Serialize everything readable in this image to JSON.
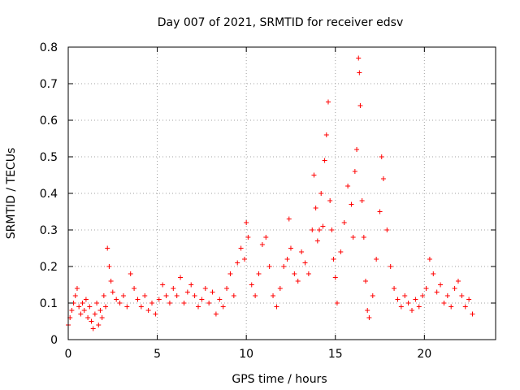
{
  "chart_data": {
    "type": "scatter",
    "title": "Day 007 of 2021, SRMTID for receiver edsv",
    "xlabel": "GPS time / hours",
    "ylabel": "SRMTID / TECUs",
    "xlim": [
      0,
      24
    ],
    "ylim": [
      0,
      0.8
    ],
    "xticks": [
      "0",
      "5",
      "10",
      "15",
      "20"
    ],
    "yticks": [
      "0",
      "0.1",
      "0.2",
      "0.3",
      "0.4",
      "0.5",
      "0.6",
      "0.7",
      "0.8"
    ],
    "grid": true,
    "marker": "+",
    "series": [
      {
        "name": "SRMTID",
        "color": "#ff0000",
        "points": [
          [
            0.0,
            0.04
          ],
          [
            0.1,
            0.06
          ],
          [
            0.2,
            0.08
          ],
          [
            0.3,
            0.1
          ],
          [
            0.4,
            0.12
          ],
          [
            0.5,
            0.14
          ],
          [
            0.6,
            0.09
          ],
          [
            0.7,
            0.07
          ],
          [
            0.8,
            0.1
          ],
          [
            0.9,
            0.08
          ],
          [
            1.0,
            0.11
          ],
          [
            1.1,
            0.06
          ],
          [
            1.2,
            0.09
          ],
          [
            1.3,
            0.05
          ],
          [
            1.4,
            0.03
          ],
          [
            1.5,
            0.07
          ],
          [
            1.6,
            0.1
          ],
          [
            1.7,
            0.04
          ],
          [
            1.8,
            0.08
          ],
          [
            1.9,
            0.06
          ],
          [
            2.0,
            0.12
          ],
          [
            2.1,
            0.09
          ],
          [
            2.2,
            0.25
          ],
          [
            2.3,
            0.2
          ],
          [
            2.4,
            0.16
          ],
          [
            2.5,
            0.13
          ],
          [
            2.7,
            0.11
          ],
          [
            2.9,
            0.1
          ],
          [
            3.1,
            0.12
          ],
          [
            3.3,
            0.09
          ],
          [
            3.5,
            0.18
          ],
          [
            3.7,
            0.14
          ],
          [
            3.9,
            0.11
          ],
          [
            4.1,
            0.09
          ],
          [
            4.3,
            0.12
          ],
          [
            4.5,
            0.08
          ],
          [
            4.7,
            0.1
          ],
          [
            4.9,
            0.07
          ],
          [
            5.1,
            0.11
          ],
          [
            5.3,
            0.15
          ],
          [
            5.5,
            0.12
          ],
          [
            5.7,
            0.1
          ],
          [
            5.9,
            0.14
          ],
          [
            6.1,
            0.12
          ],
          [
            6.3,
            0.17
          ],
          [
            6.5,
            0.1
          ],
          [
            6.7,
            0.13
          ],
          [
            6.9,
            0.15
          ],
          [
            7.1,
            0.12
          ],
          [
            7.3,
            0.09
          ],
          [
            7.5,
            0.11
          ],
          [
            7.7,
            0.14
          ],
          [
            7.9,
            0.1
          ],
          [
            8.1,
            0.13
          ],
          [
            8.3,
            0.07
          ],
          [
            8.5,
            0.11
          ],
          [
            8.7,
            0.09
          ],
          [
            8.9,
            0.14
          ],
          [
            9.1,
            0.18
          ],
          [
            9.3,
            0.12
          ],
          [
            9.5,
            0.21
          ],
          [
            9.7,
            0.25
          ],
          [
            9.9,
            0.22
          ],
          [
            10.0,
            0.32
          ],
          [
            10.1,
            0.28
          ],
          [
            10.3,
            0.15
          ],
          [
            10.5,
            0.12
          ],
          [
            10.7,
            0.18
          ],
          [
            10.9,
            0.26
          ],
          [
            11.1,
            0.28
          ],
          [
            11.3,
            0.2
          ],
          [
            11.5,
            0.12
          ],
          [
            11.7,
            0.09
          ],
          [
            11.9,
            0.14
          ],
          [
            12.1,
            0.2
          ],
          [
            12.3,
            0.22
          ],
          [
            12.4,
            0.33
          ],
          [
            12.5,
            0.25
          ],
          [
            12.7,
            0.18
          ],
          [
            12.9,
            0.16
          ],
          [
            13.1,
            0.24
          ],
          [
            13.3,
            0.21
          ],
          [
            13.5,
            0.18
          ],
          [
            13.7,
            0.3
          ],
          [
            13.8,
            0.45
          ],
          [
            13.9,
            0.36
          ],
          [
            14.0,
            0.27
          ],
          [
            14.1,
            0.3
          ],
          [
            14.2,
            0.4
          ],
          [
            14.3,
            0.31
          ],
          [
            14.4,
            0.49
          ],
          [
            14.5,
            0.56
          ],
          [
            14.6,
            0.65
          ],
          [
            14.7,
            0.38
          ],
          [
            14.8,
            0.3
          ],
          [
            14.9,
            0.22
          ],
          [
            15.0,
            0.17
          ],
          [
            15.1,
            0.1
          ],
          [
            15.3,
            0.24
          ],
          [
            15.5,
            0.32
          ],
          [
            15.7,
            0.42
          ],
          [
            15.9,
            0.37
          ],
          [
            16.0,
            0.28
          ],
          [
            16.1,
            0.46
          ],
          [
            16.2,
            0.52
          ],
          [
            16.3,
            0.77
          ],
          [
            16.35,
            0.73
          ],
          [
            16.4,
            0.64
          ],
          [
            16.5,
            0.38
          ],
          [
            16.6,
            0.28
          ],
          [
            16.7,
            0.16
          ],
          [
            16.8,
            0.08
          ],
          [
            16.9,
            0.06
          ],
          [
            17.1,
            0.12
          ],
          [
            17.3,
            0.22
          ],
          [
            17.5,
            0.35
          ],
          [
            17.6,
            0.5
          ],
          [
            17.7,
            0.44
          ],
          [
            17.9,
            0.3
          ],
          [
            18.1,
            0.2
          ],
          [
            18.3,
            0.14
          ],
          [
            18.5,
            0.11
          ],
          [
            18.7,
            0.09
          ],
          [
            18.9,
            0.12
          ],
          [
            19.1,
            0.1
          ],
          [
            19.3,
            0.08
          ],
          [
            19.5,
            0.11
          ],
          [
            19.7,
            0.09
          ],
          [
            19.9,
            0.12
          ],
          [
            20.1,
            0.14
          ],
          [
            20.3,
            0.22
          ],
          [
            20.5,
            0.18
          ],
          [
            20.7,
            0.13
          ],
          [
            20.9,
            0.15
          ],
          [
            21.1,
            0.1
          ],
          [
            21.3,
            0.12
          ],
          [
            21.5,
            0.09
          ],
          [
            21.7,
            0.14
          ],
          [
            21.9,
            0.16
          ],
          [
            22.1,
            0.12
          ],
          [
            22.3,
            0.09
          ],
          [
            22.5,
            0.11
          ],
          [
            22.7,
            0.07
          ]
        ]
      }
    ]
  }
}
